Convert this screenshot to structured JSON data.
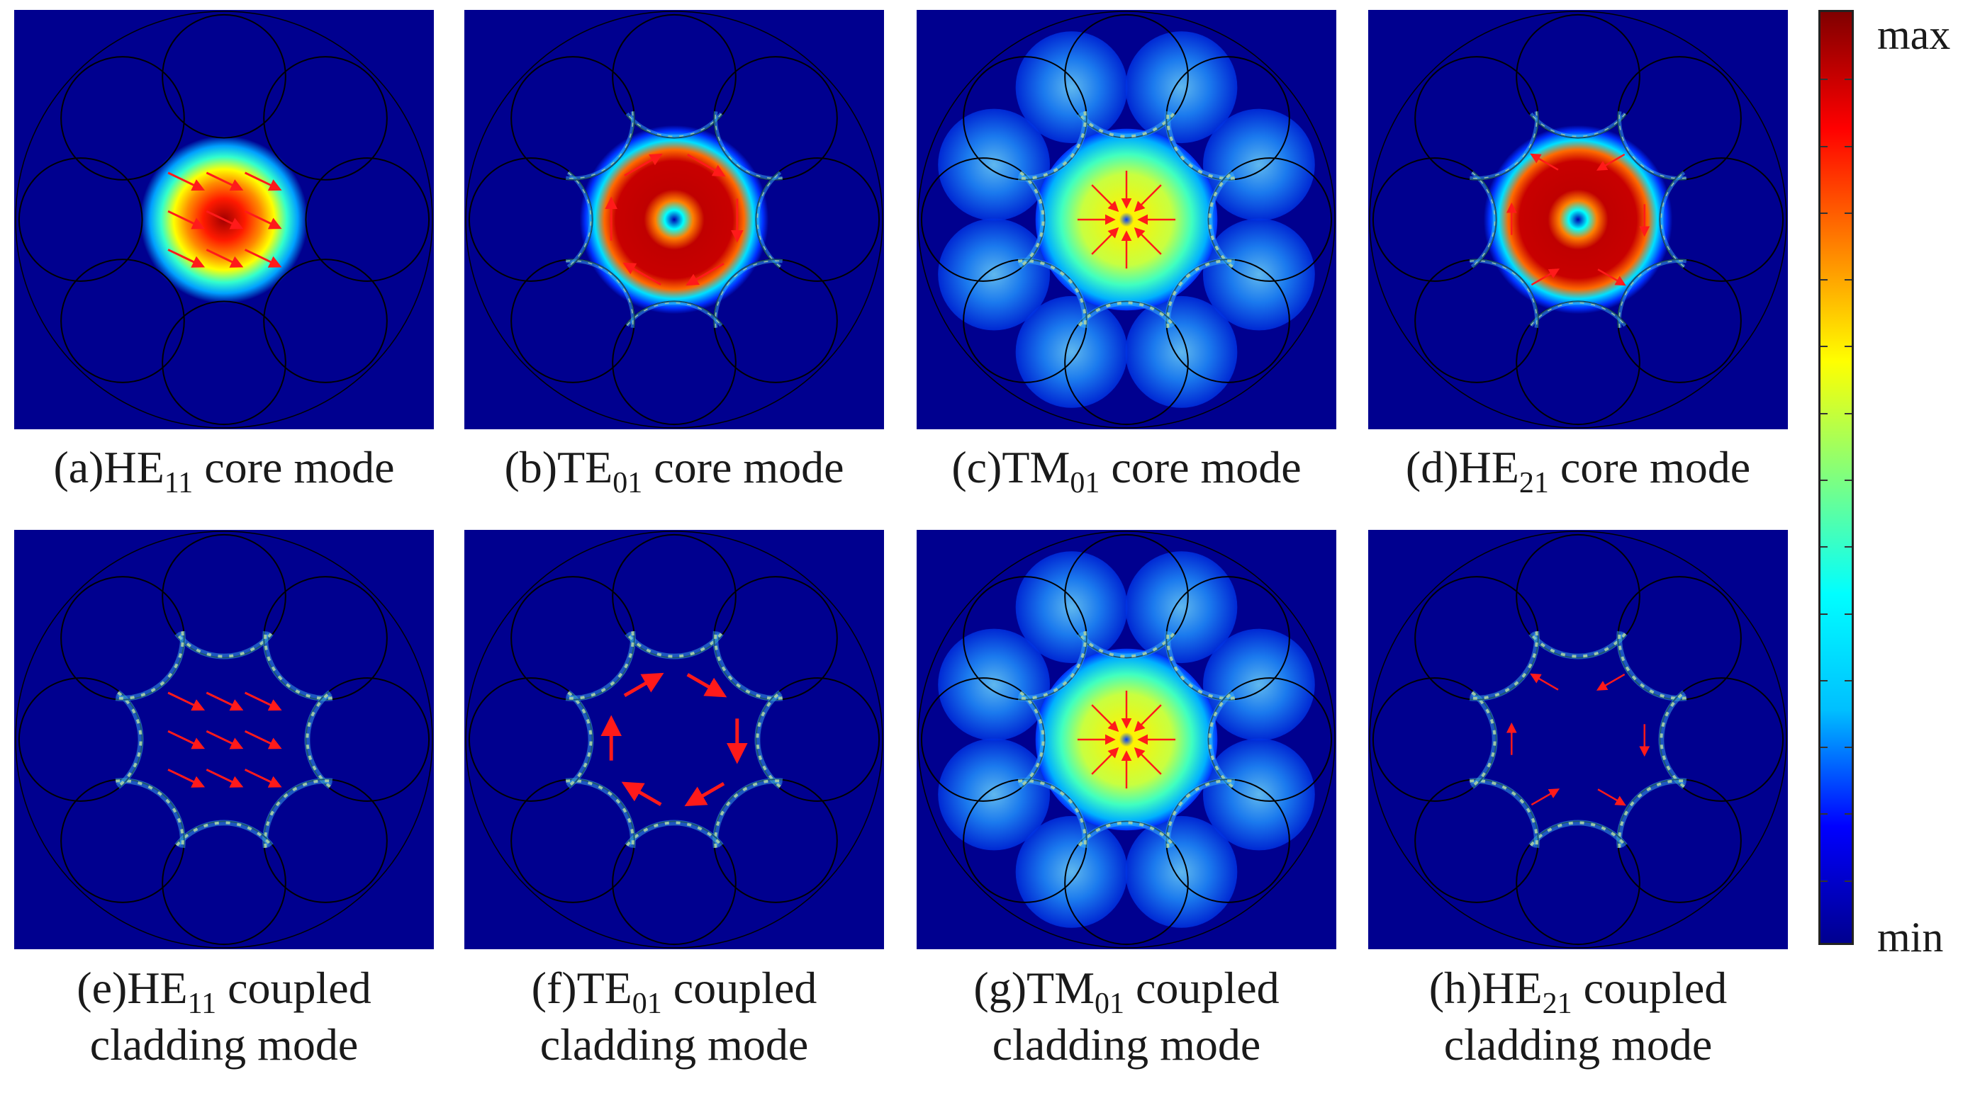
{
  "panels": [
    {
      "id": "a",
      "label": "(a)",
      "mode": "HE",
      "sub": "11",
      "desc1": " core mode",
      "desc2": "",
      "kind": "he11core",
      "arrows": true
    },
    {
      "id": "b",
      "label": "(b)",
      "mode": "TE",
      "sub": "01",
      "desc1": " core mode",
      "desc2": "",
      "kind": "ringcore",
      "arrows": true
    },
    {
      "id": "c",
      "label": "(c)",
      "mode": "TM",
      "sub": "01",
      "desc1": " core mode",
      "desc2": "",
      "kind": "tm",
      "arrows": true
    },
    {
      "id": "d",
      "label": "(d)",
      "mode": "HE",
      "sub": "21",
      "desc1": " core mode",
      "desc2": "",
      "kind": "ringcore",
      "arrows": true
    },
    {
      "id": "e",
      "label": "(e)",
      "mode": "HE",
      "sub": "11",
      "desc1": " coupled",
      "desc2": "cladding mode",
      "kind": "cladding",
      "arrows": true
    },
    {
      "id": "f",
      "label": "(f)",
      "mode": "TE",
      "sub": "01",
      "desc1": " coupled",
      "desc2": "cladding mode",
      "kind": "cladding",
      "arrows": true
    },
    {
      "id": "g",
      "label": "(g)",
      "mode": "TM",
      "sub": "01",
      "desc1": " coupled",
      "desc2": "cladding mode",
      "kind": "tm",
      "arrows": true
    },
    {
      "id": "h",
      "label": "(h)",
      "mode": "HE",
      "sub": "21",
      "desc1": " coupled",
      "desc2": "cladding mode",
      "kind": "cladding",
      "arrows": true
    }
  ],
  "colorbar": {
    "max_label": "max",
    "min_label": "min",
    "colormap": "jet",
    "colors": [
      "#00008f",
      "#0000ff",
      "#00bfff",
      "#00ffff",
      "#7fff7f",
      "#ffff00",
      "#ff8000",
      "#ff0000",
      "#800000"
    ]
  },
  "colors": {
    "background_field": "#00008f",
    "arrow": "#ff1a1a",
    "capillary_outline": "#000000"
  }
}
